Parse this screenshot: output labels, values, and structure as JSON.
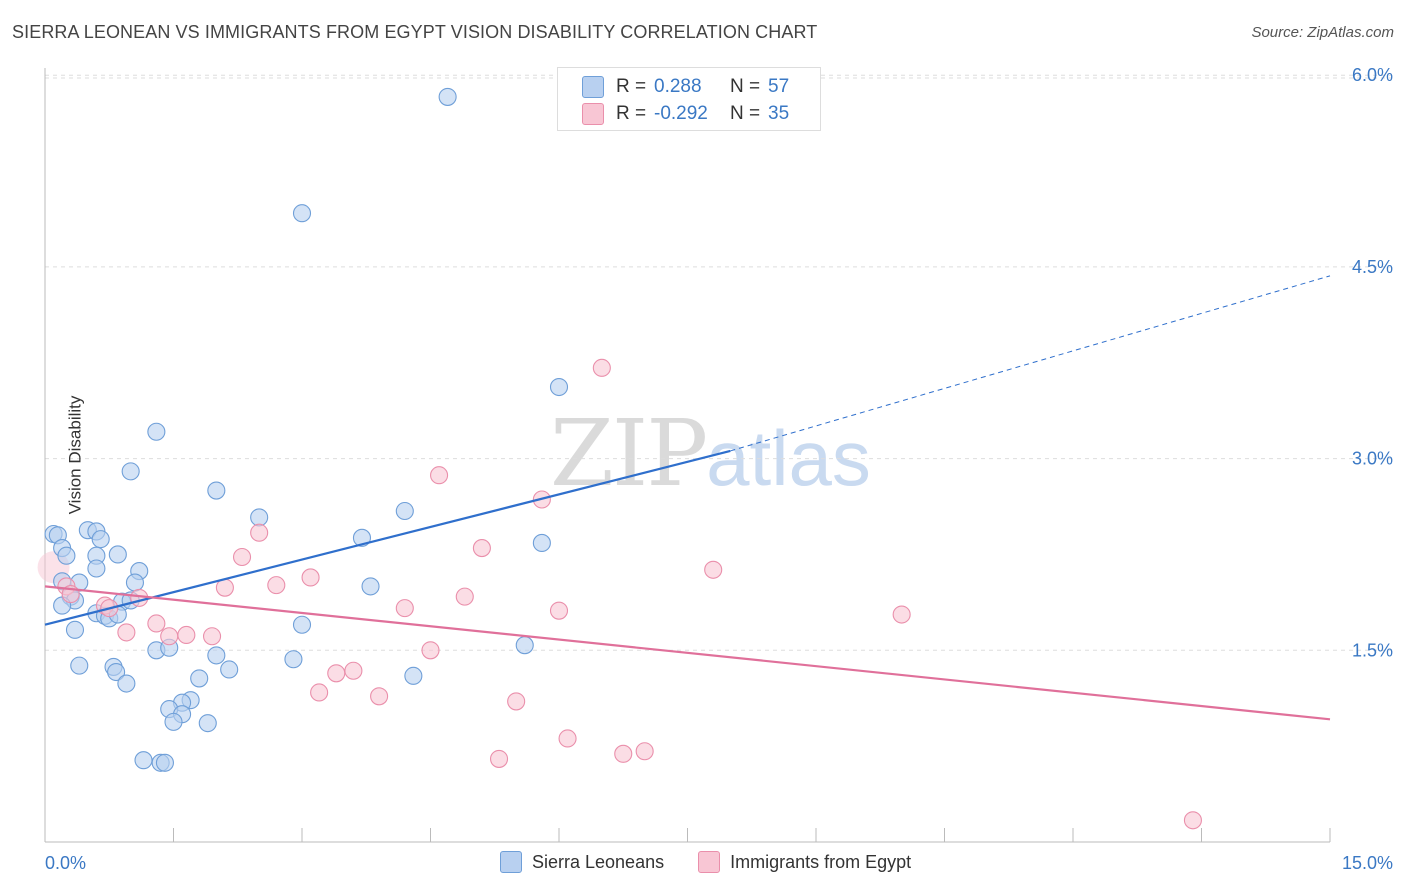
{
  "header": {
    "title": "SIERRA LEONEAN VS IMMIGRANTS FROM EGYPT VISION DISABILITY CORRELATION CHART",
    "source": "Source: ZipAtlas.com"
  },
  "watermark": {
    "zip": "ZIP",
    "atlas": "atlas"
  },
  "legend_top": {
    "rows": [
      {
        "r_label": "R =",
        "r_value": "0.288",
        "n_label": "N =",
        "n_value": "57"
      },
      {
        "r_label": "R =",
        "r_value": "-0.292",
        "n_label": "N =",
        "n_value": "35"
      }
    ]
  },
  "legend_bottom": {
    "items": [
      {
        "label": "Sierra Leoneans"
      },
      {
        "label": "Immigrants from Egypt"
      }
    ]
  },
  "colors": {
    "blue_fill": "#b8d0f0",
    "blue_stroke": "#6f9fd8",
    "blue_line": "#2f6fcc",
    "pink_fill": "#f8c6d4",
    "pink_stroke": "#ea8fab",
    "pink_line": "#e0709a",
    "tick_label": "#3a78c4",
    "grid": "#dddddd"
  },
  "chart_data": {
    "type": "scatter",
    "title": "SIERRA LEONEAN VS IMMIGRANTS FROM EGYPT VISION DISABILITY CORRELATION CHART",
    "ylabel": "Vision Disability",
    "xlabel": "",
    "xlim": [
      0,
      15
    ],
    "ylim": [
      0,
      6.3
    ],
    "x_tick_labels": [
      "0.0%",
      "15.0%"
    ],
    "y_ticks": [
      1.5,
      3.0,
      4.5,
      6.0
    ],
    "y_tick_labels": [
      "1.5%",
      "3.0%",
      "4.5%",
      "6.0%"
    ],
    "grid": true,
    "series": [
      {
        "name": "Sierra Leoneans",
        "r": 0.288,
        "n": 57,
        "trend": {
          "x0": 0.0,
          "y0": 1.7,
          "x1": 8.0,
          "y1": 3.06,
          "dash_to_x": 15.0,
          "dash_to_y": 4.43
        },
        "points": [
          [
            4.7,
            5.83
          ],
          [
            3.0,
            4.92
          ],
          [
            6.0,
            3.56
          ],
          [
            1.3,
            3.21
          ],
          [
            1.0,
            2.9
          ],
          [
            2.0,
            2.75
          ],
          [
            2.5,
            2.54
          ],
          [
            4.2,
            2.59
          ],
          [
            0.5,
            2.44
          ],
          [
            0.6,
            2.43
          ],
          [
            0.65,
            2.37
          ],
          [
            0.85,
            2.25
          ],
          [
            3.7,
            2.38
          ],
          [
            5.8,
            2.34
          ],
          [
            0.1,
            2.41
          ],
          [
            0.15,
            2.4
          ],
          [
            0.2,
            2.3
          ],
          [
            0.25,
            2.24
          ],
          [
            0.6,
            2.24
          ],
          [
            0.6,
            2.14
          ],
          [
            1.1,
            2.12
          ],
          [
            1.05,
            2.03
          ],
          [
            0.4,
            2.03
          ],
          [
            0.2,
            2.04
          ],
          [
            3.8,
            2.0
          ],
          [
            0.3,
            1.92
          ],
          [
            0.35,
            1.89
          ],
          [
            0.9,
            1.88
          ],
          [
            1.0,
            1.89
          ],
          [
            0.2,
            1.85
          ],
          [
            0.6,
            1.79
          ],
          [
            0.7,
            1.77
          ],
          [
            0.75,
            1.75
          ],
          [
            0.85,
            1.78
          ],
          [
            3.0,
            1.7
          ],
          [
            0.35,
            1.66
          ],
          [
            1.3,
            1.5
          ],
          [
            1.45,
            1.52
          ],
          [
            2.0,
            1.46
          ],
          [
            2.9,
            1.43
          ],
          [
            5.6,
            1.54
          ],
          [
            0.4,
            1.38
          ],
          [
            0.8,
            1.37
          ],
          [
            0.83,
            1.33
          ],
          [
            2.15,
            1.35
          ],
          [
            4.3,
            1.3
          ],
          [
            1.8,
            1.28
          ],
          [
            0.95,
            1.24
          ],
          [
            1.7,
            1.11
          ],
          [
            1.6,
            1.09
          ],
          [
            1.45,
            1.04
          ],
          [
            1.6,
            1.0
          ],
          [
            1.5,
            0.94
          ],
          [
            1.9,
            0.93
          ],
          [
            1.15,
            0.64
          ],
          [
            1.35,
            0.62
          ],
          [
            1.4,
            0.62
          ]
        ]
      },
      {
        "name": "Immigrants from Egypt",
        "r": -0.292,
        "n": 35,
        "trend": {
          "x0": 0.0,
          "y0": 2.0,
          "x1": 15.0,
          "y1": 0.96
        },
        "points": [
          [
            6.5,
            3.71
          ],
          [
            4.6,
            2.87
          ],
          [
            5.8,
            2.68
          ],
          [
            2.5,
            2.42
          ],
          [
            5.1,
            2.3
          ],
          [
            2.3,
            2.23
          ],
          [
            7.8,
            2.13
          ],
          [
            3.1,
            2.07
          ],
          [
            2.7,
            2.01
          ],
          [
            2.1,
            1.99
          ],
          [
            0.25,
            2.0
          ],
          [
            4.9,
            1.92
          ],
          [
            0.3,
            1.94
          ],
          [
            1.1,
            1.91
          ],
          [
            0.7,
            1.85
          ],
          [
            0.75,
            1.83
          ],
          [
            4.2,
            1.83
          ],
          [
            6.0,
            1.81
          ],
          [
            10.0,
            1.78
          ],
          [
            1.3,
            1.71
          ],
          [
            0.95,
            1.64
          ],
          [
            1.65,
            1.62
          ],
          [
            1.45,
            1.61
          ],
          [
            1.95,
            1.61
          ],
          [
            4.5,
            1.5
          ],
          [
            3.6,
            1.34
          ],
          [
            3.4,
            1.32
          ],
          [
            3.2,
            1.17
          ],
          [
            3.9,
            1.14
          ],
          [
            5.5,
            1.1
          ],
          [
            6.1,
            0.81
          ],
          [
            7.0,
            0.71
          ],
          [
            6.75,
            0.69
          ],
          [
            5.3,
            0.65
          ],
          [
            13.4,
            0.17
          ]
        ]
      }
    ]
  }
}
